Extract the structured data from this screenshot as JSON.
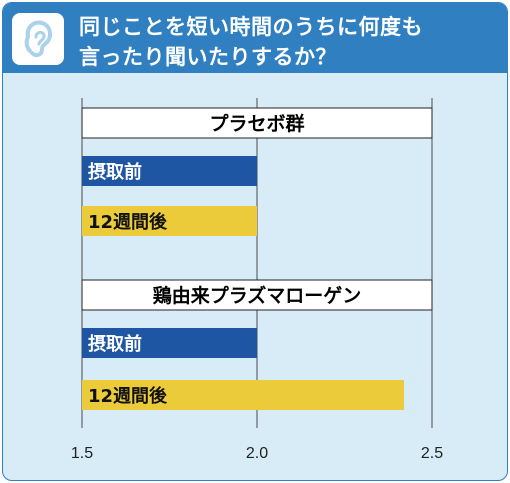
{
  "header": {
    "title_line1": "同じことを短い時間のうちに何度も",
    "title_line2": "言ったり聞いたりするか？",
    "icon": "ear-icon"
  },
  "colors": {
    "header_bg": "#2f7fc1",
    "panel_bg": "#d8ecf7",
    "before_bar": "#1f56a4",
    "after_bar": "#eccb3a"
  },
  "chart_data": {
    "type": "bar",
    "orientation": "horizontal",
    "xlim": [
      1.5,
      2.5
    ],
    "x_ticks": [
      "1.5",
      "2.0",
      "2.5"
    ],
    "grid": true,
    "groups": [
      {
        "name": "プラセボ群",
        "bars": [
          {
            "label": "摂取前",
            "value": 2.0
          },
          {
            "label": "12週間後",
            "value": 2.0
          }
        ]
      },
      {
        "name": "鶏由来プラズマローゲン",
        "bars": [
          {
            "label": "摂取前",
            "value": 2.0
          },
          {
            "label": "12週間後",
            "value": 2.42
          }
        ]
      }
    ]
  }
}
